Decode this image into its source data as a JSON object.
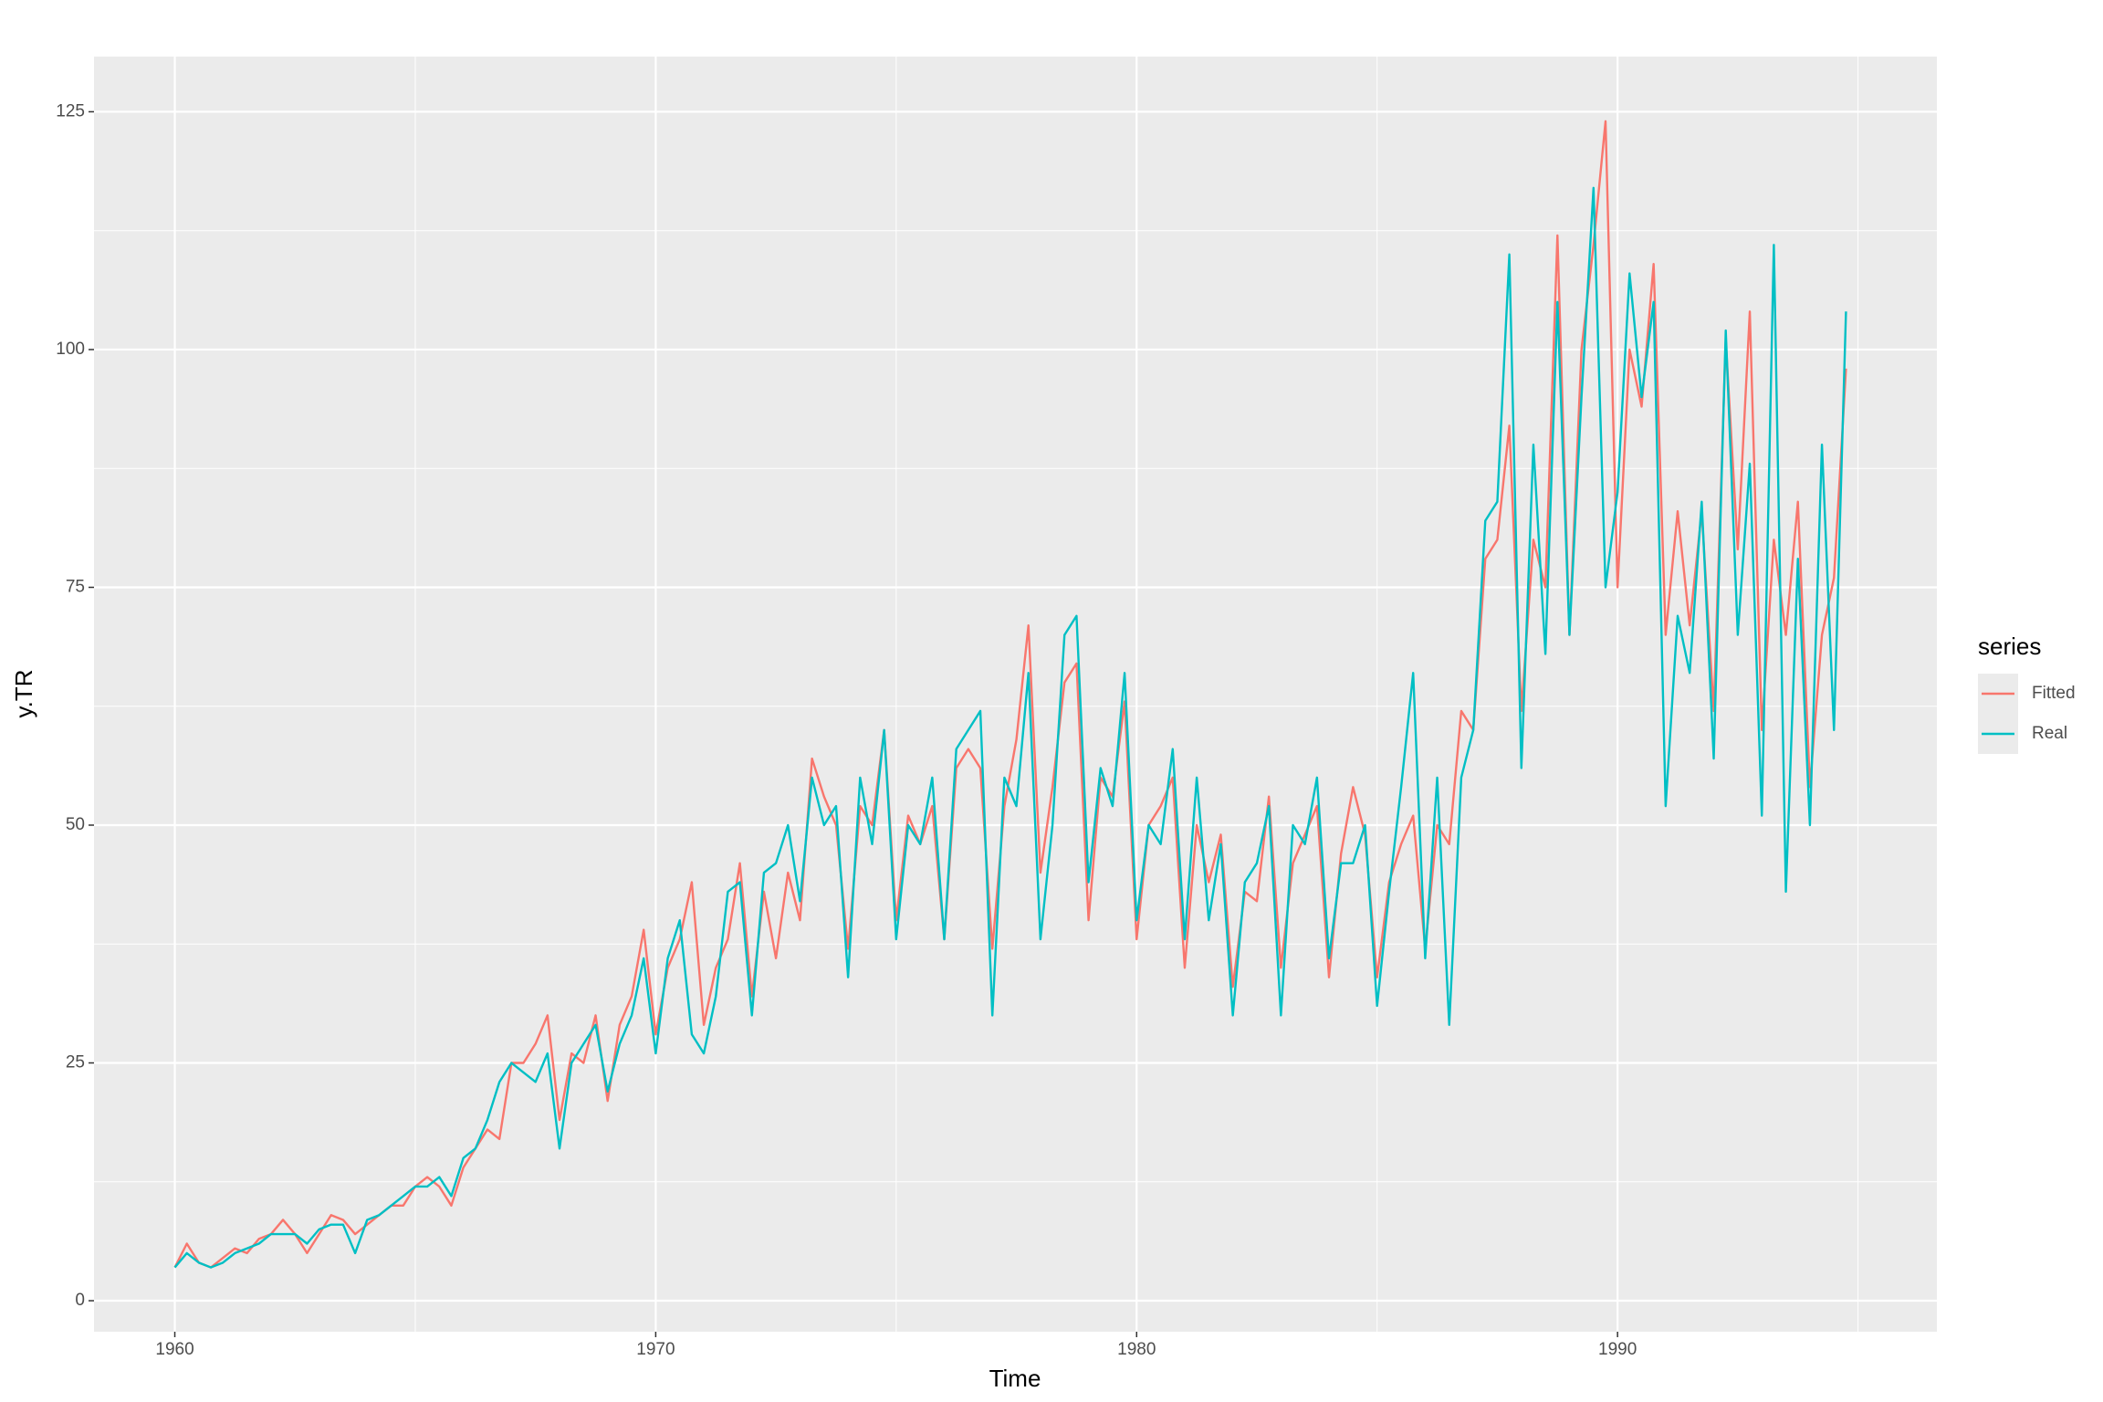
{
  "chart_data": {
    "type": "line",
    "x_label": "Time",
    "y_label": "y.TR",
    "legend_title": "series",
    "xlim": [
      1958.32,
      1996.64
    ],
    "ylim": [
      -3.26,
      130.8
    ],
    "xticks": [
      1960,
      1970,
      1980,
      1990
    ],
    "yticks": [
      0,
      25,
      50,
      75,
      100,
      125
    ],
    "grid": true,
    "legend": "right",
    "x": [
      1960,
      1960.25,
      1960.5,
      1960.75,
      1961,
      1961.25,
      1961.5,
      1961.75,
      1962,
      1962.25,
      1962.5,
      1962.75,
      1963,
      1963.25,
      1963.5,
      1963.75,
      1964,
      1964.25,
      1964.5,
      1964.75,
      1965,
      1965.25,
      1965.5,
      1965.75,
      1966,
      1966.25,
      1966.5,
      1966.75,
      1967,
      1967.25,
      1967.5,
      1967.75,
      1968,
      1968.25,
      1968.5,
      1968.75,
      1969,
      1969.25,
      1969.5,
      1969.75,
      1970,
      1970.25,
      1970.5,
      1970.75,
      1971,
      1971.25,
      1971.5,
      1971.75,
      1972,
      1972.25,
      1972.5,
      1972.75,
      1973,
      1973.25,
      1973.5,
      1973.75,
      1974,
      1974.25,
      1974.5,
      1974.75,
      1975,
      1975.25,
      1975.5,
      1975.75,
      1976,
      1976.25,
      1976.5,
      1976.75,
      1977,
      1977.25,
      1977.5,
      1977.75,
      1978,
      1978.25,
      1978.5,
      1978.75,
      1979,
      1979.25,
      1979.5,
      1979.75,
      1980,
      1980.25,
      1980.5,
      1980.75,
      1981,
      1981.25,
      1981.5,
      1981.75,
      1982,
      1982.25,
      1982.5,
      1982.75,
      1983,
      1983.25,
      1983.5,
      1983.75,
      1984,
      1984.25,
      1984.5,
      1984.75,
      1985,
      1985.25,
      1985.5,
      1985.75,
      1986,
      1986.25,
      1986.5,
      1986.75,
      1987,
      1987.25,
      1987.5,
      1987.75,
      1988,
      1988.25,
      1988.5,
      1988.75,
      1989,
      1989.25,
      1989.5,
      1989.75,
      1990,
      1990.25,
      1990.5,
      1990.75,
      1991,
      1991.25,
      1991.5,
      1991.75,
      1992,
      1992.25,
      1992.5,
      1992.75,
      1993,
      1993.25,
      1993.5,
      1993.75,
      1994,
      1994.25,
      1994.5,
      1994.75
    ],
    "series": [
      {
        "name": "Fitted",
        "color": "#F8766D",
        "values": [
          3.5,
          6,
          4,
          3.5,
          4.5,
          5.5,
          5,
          6.5,
          7,
          8.5,
          7,
          5,
          7,
          9,
          8.5,
          7,
          8,
          9,
          10,
          10,
          12,
          13,
          12,
          10,
          14,
          16,
          18,
          17,
          25,
          25,
          27,
          30,
          19,
          26,
          25,
          30,
          21,
          29,
          32,
          39,
          28,
          35,
          38,
          44,
          29,
          35,
          38,
          46,
          32,
          43,
          36,
          45,
          40,
          57,
          53,
          50,
          37,
          52,
          50,
          60,
          40,
          51,
          48,
          52,
          38,
          56,
          58,
          56,
          37,
          52,
          59,
          71,
          45,
          54,
          65,
          67,
          40,
          55,
          53,
          63,
          38,
          50,
          52,
          55,
          35,
          50,
          44,
          49,
          33,
          43,
          42,
          53,
          35,
          46,
          49,
          52,
          34,
          47,
          54,
          49,
          34,
          44,
          48,
          51,
          37,
          50,
          48,
          62,
          60,
          78,
          80,
          92,
          62,
          80,
          75,
          112,
          70,
          100,
          111,
          124,
          75,
          100,
          94,
          109,
          70,
          83,
          71,
          83,
          62,
          101,
          79,
          104,
          60,
          80,
          70,
          84,
          54,
          70,
          76,
          98
        ]
      },
      {
        "name": "Real",
        "color": "#00BFC4",
        "values": [
          3.5,
          5,
          4,
          3.5,
          4,
          5,
          5.5,
          6,
          7,
          7,
          7,
          6,
          7.5,
          8,
          8,
          5,
          8.5,
          9,
          10,
          11,
          12,
          12,
          13,
          11,
          15,
          16,
          19,
          23,
          25,
          24,
          23,
          26,
          16,
          25,
          27,
          29,
          22,
          27,
          30,
          36,
          26,
          36,
          40,
          28,
          26,
          32,
          43,
          44,
          30,
          45,
          46,
          50,
          42,
          55,
          50,
          52,
          34,
          55,
          48,
          60,
          38,
          50,
          48,
          55,
          38,
          58,
          60,
          62,
          30,
          55,
          52,
          66,
          38,
          50,
          70,
          72,
          44,
          56,
          52,
          66,
          40,
          50,
          48,
          58,
          38,
          55,
          40,
          48,
          30,
          44,
          46,
          52,
          30,
          50,
          48,
          55,
          36,
          46,
          46,
          50,
          31,
          43,
          54,
          66,
          36,
          55,
          29,
          55,
          60,
          82,
          84,
          110,
          56,
          90,
          68,
          105,
          70,
          95,
          117,
          75,
          85,
          108,
          95,
          105,
          52,
          72,
          66,
          84,
          57,
          102,
          70,
          88,
          51,
          111,
          43,
          78,
          50,
          90,
          60,
          104
        ]
      }
    ]
  }
}
